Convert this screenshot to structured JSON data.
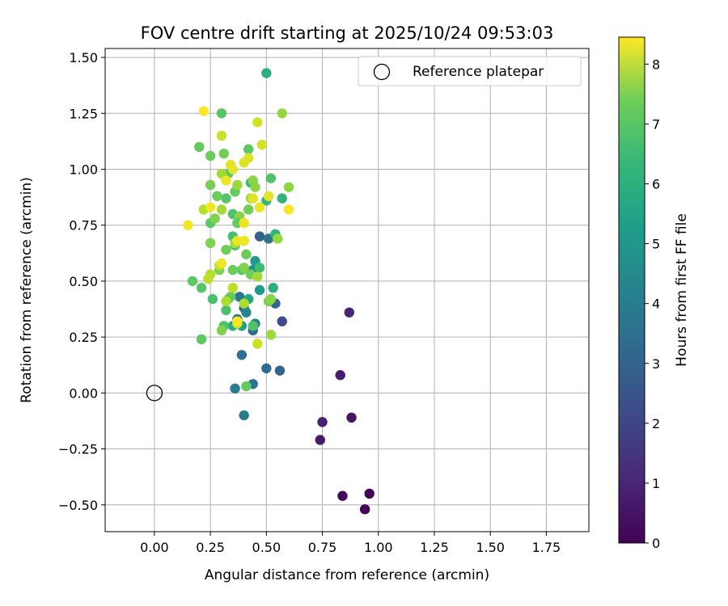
{
  "chart_data": {
    "type": "scatter",
    "title": "FOV centre drift starting at 2025/10/24 09:53:03",
    "xlabel": "Angular distance from reference (arcmin)",
    "ylabel": "Rotation from reference (arcmin)",
    "xlim": [
      -0.22,
      1.94
    ],
    "ylim": [
      -0.62,
      1.54
    ],
    "xticks": [
      0.0,
      0.25,
      0.5,
      0.75,
      1.0,
      1.25,
      1.5,
      1.75
    ],
    "xtick_labels": [
      "0.00",
      "0.25",
      "0.50",
      "0.75",
      "1.00",
      "1.25",
      "1.50",
      "1.75"
    ],
    "yticks": [
      -0.5,
      -0.25,
      0.0,
      0.25,
      0.5,
      0.75,
      1.0,
      1.25,
      1.5
    ],
    "ytick_labels": [
      "−0.50",
      "−0.25",
      "0.00",
      "0.25",
      "0.50",
      "0.75",
      "1.00",
      "1.25",
      "1.50"
    ],
    "grid": true,
    "legend": {
      "label": "Reference platepar",
      "placement": "top-right",
      "marker": "open-circle"
    },
    "reference_point": {
      "x": 0.0,
      "y": 0.0
    },
    "colorbar": {
      "label": "Hours from first FF file",
      "range": [
        0,
        8.45
      ],
      "ticks": [
        0,
        1,
        2,
        3,
        4,
        5,
        6,
        7,
        8
      ],
      "tick_labels": [
        "0",
        "1",
        "2",
        "3",
        "4",
        "5",
        "6",
        "7",
        "8"
      ],
      "colormap": "viridis"
    },
    "series": [
      {
        "name": "FOV centre drift",
        "points": [
          {
            "x": 0.94,
            "y": -0.52,
            "c": 0.05
          },
          {
            "x": 0.96,
            "y": -0.45,
            "c": 0.1
          },
          {
            "x": 0.84,
            "y": -0.46,
            "c": 0.2
          },
          {
            "x": 0.74,
            "y": -0.21,
            "c": 0.6
          },
          {
            "x": 0.75,
            "y": -0.13,
            "c": 0.8
          },
          {
            "x": 0.88,
            "y": -0.11,
            "c": 0.5
          },
          {
            "x": 0.83,
            "y": 0.08,
            "c": 0.7
          },
          {
            "x": 0.87,
            "y": 0.36,
            "c": 0.9
          },
          {
            "x": 0.57,
            "y": 0.32,
            "c": 1.9
          },
          {
            "x": 0.56,
            "y": 0.1,
            "c": 2.7
          },
          {
            "x": 0.5,
            "y": 0.11,
            "c": 3.0
          },
          {
            "x": 0.39,
            "y": 0.17,
            "c": 3.1
          },
          {
            "x": 0.4,
            "y": -0.1,
            "c": 3.5
          },
          {
            "x": 0.36,
            "y": 0.02,
            "c": 3.6
          },
          {
            "x": 0.44,
            "y": 0.04,
            "c": 3.3
          },
          {
            "x": 0.44,
            "y": 0.28,
            "c": 2.9
          },
          {
            "x": 0.54,
            "y": 0.4,
            "c": 2.8
          },
          {
            "x": 0.47,
            "y": 0.7,
            "c": 2.6
          },
          {
            "x": 0.51,
            "y": 0.69,
            "c": 3.2
          },
          {
            "x": 0.4,
            "y": 0.38,
            "c": 3.0
          },
          {
            "x": 0.38,
            "y": 0.43,
            "c": 3.4
          },
          {
            "x": 0.37,
            "y": 0.33,
            "c": 3.5
          },
          {
            "x": 0.45,
            "y": 0.31,
            "c": 3.8
          },
          {
            "x": 0.41,
            "y": 0.36,
            "c": 3.9
          },
          {
            "x": 0.44,
            "y": 0.55,
            "c": 4.2
          },
          {
            "x": 0.47,
            "y": 0.46,
            "c": 4.5
          },
          {
            "x": 0.45,
            "y": 0.59,
            "c": 4.6
          },
          {
            "x": 0.39,
            "y": 0.3,
            "c": 4.8
          },
          {
            "x": 0.42,
            "y": 0.42,
            "c": 5.0
          },
          {
            "x": 0.35,
            "y": 0.3,
            "c": 5.2
          },
          {
            "x": 0.53,
            "y": 0.47,
            "c": 5.3
          },
          {
            "x": 0.54,
            "y": 0.71,
            "c": 5.4
          },
          {
            "x": 0.57,
            "y": 0.87,
            "c": 5.5
          },
          {
            "x": 0.5,
            "y": 0.86,
            "c": 5.6
          },
          {
            "x": 0.43,
            "y": 0.94,
            "c": 5.7
          },
          {
            "x": 0.5,
            "y": 1.43,
            "c": 5.3
          },
          {
            "x": 0.47,
            "y": 0.56,
            "c": 5.8
          },
          {
            "x": 0.35,
            "y": 0.7,
            "c": 5.9
          },
          {
            "x": 0.32,
            "y": 0.37,
            "c": 6.0
          },
          {
            "x": 0.44,
            "y": 0.3,
            "c": 6.1
          },
          {
            "x": 0.21,
            "y": 0.47,
            "c": 6.2
          },
          {
            "x": 0.26,
            "y": 0.42,
            "c": 6.0
          },
          {
            "x": 0.21,
            "y": 0.24,
            "c": 6.3
          },
          {
            "x": 0.41,
            "y": 0.03,
            "c": 6.4
          },
          {
            "x": 0.31,
            "y": 0.3,
            "c": 6.1
          },
          {
            "x": 0.39,
            "y": 0.55,
            "c": 6.2
          },
          {
            "x": 0.34,
            "y": 0.43,
            "c": 6.4
          },
          {
            "x": 0.36,
            "y": 0.66,
            "c": 6.0
          },
          {
            "x": 0.41,
            "y": 0.62,
            "c": 6.5
          },
          {
            "x": 0.52,
            "y": 0.96,
            "c": 6.1
          },
          {
            "x": 0.42,
            "y": 1.09,
            "c": 6.3
          },
          {
            "x": 0.3,
            "y": 1.25,
            "c": 6.2
          },
          {
            "x": 0.2,
            "y": 1.1,
            "c": 6.4
          },
          {
            "x": 0.25,
            "y": 1.06,
            "c": 6.5
          },
          {
            "x": 0.31,
            "y": 1.07,
            "c": 6.6
          },
          {
            "x": 0.33,
            "y": 0.98,
            "c": 6.3
          },
          {
            "x": 0.25,
            "y": 0.93,
            "c": 6.7
          },
          {
            "x": 0.28,
            "y": 0.88,
            "c": 6.5
          },
          {
            "x": 0.32,
            "y": 0.87,
            "c": 6.2
          },
          {
            "x": 0.36,
            "y": 0.9,
            "c": 6.4
          },
          {
            "x": 0.42,
            "y": 0.82,
            "c": 6.6
          },
          {
            "x": 0.25,
            "y": 0.76,
            "c": 6.3
          },
          {
            "x": 0.27,
            "y": 0.78,
            "c": 6.8
          },
          {
            "x": 0.35,
            "y": 0.8,
            "c": 6.1
          },
          {
            "x": 0.38,
            "y": 0.79,
            "c": 6.9
          },
          {
            "x": 0.37,
            "y": 0.76,
            "c": 6.4
          },
          {
            "x": 0.25,
            "y": 0.67,
            "c": 6.8
          },
          {
            "x": 0.32,
            "y": 0.64,
            "c": 6.6
          },
          {
            "x": 0.4,
            "y": 0.68,
            "c": 6.9
          },
          {
            "x": 0.17,
            "y": 0.5,
            "c": 6.3
          },
          {
            "x": 0.29,
            "y": 0.55,
            "c": 6.7
          },
          {
            "x": 0.35,
            "y": 0.55,
            "c": 6.5
          },
          {
            "x": 0.4,
            "y": 0.56,
            "c": 6.8
          },
          {
            "x": 0.43,
            "y": 0.53,
            "c": 6.6
          },
          {
            "x": 0.51,
            "y": 0.41,
            "c": 6.7
          },
          {
            "x": 0.52,
            "y": 0.42,
            "c": 6.9
          },
          {
            "x": 0.33,
            "y": 0.42,
            "c": 6.4
          },
          {
            "x": 0.3,
            "y": 0.28,
            "c": 6.8
          },
          {
            "x": 0.57,
            "y": 1.25,
            "c": 7.1
          },
          {
            "x": 0.44,
            "y": 0.95,
            "c": 6.9
          },
          {
            "x": 0.45,
            "y": 0.92,
            "c": 7.0
          },
          {
            "x": 0.6,
            "y": 0.92,
            "c": 7.0
          },
          {
            "x": 0.55,
            "y": 0.69,
            "c": 7.1
          },
          {
            "x": 0.52,
            "y": 0.26,
            "c": 7.2
          },
          {
            "x": 0.37,
            "y": 0.93,
            "c": 7.2
          },
          {
            "x": 0.3,
            "y": 0.98,
            "c": 7.3
          },
          {
            "x": 0.43,
            "y": 0.87,
            "c": 7.2
          },
          {
            "x": 0.36,
            "y": 0.67,
            "c": 7.3
          },
          {
            "x": 0.4,
            "y": 0.4,
            "c": 7.4
          },
          {
            "x": 0.46,
            "y": 0.52,
            "c": 7.3
          },
          {
            "x": 0.32,
            "y": 0.41,
            "c": 7.4
          },
          {
            "x": 0.3,
            "y": 0.82,
            "c": 7.3
          },
          {
            "x": 0.22,
            "y": 0.82,
            "c": 7.5
          },
          {
            "x": 0.25,
            "y": 0.53,
            "c": 7.5
          },
          {
            "x": 0.24,
            "y": 0.51,
            "c": 7.6
          },
          {
            "x": 0.29,
            "y": 0.57,
            "c": 7.7
          },
          {
            "x": 0.35,
            "y": 0.47,
            "c": 7.6
          },
          {
            "x": 0.37,
            "y": 0.31,
            "c": 7.8
          },
          {
            "x": 0.46,
            "y": 0.22,
            "c": 7.8
          },
          {
            "x": 0.3,
            "y": 1.15,
            "c": 7.8
          },
          {
            "x": 0.48,
            "y": 1.11,
            "c": 7.9
          },
          {
            "x": 0.46,
            "y": 1.21,
            "c": 7.9
          },
          {
            "x": 0.42,
            "y": 1.05,
            "c": 8.0
          },
          {
            "x": 0.4,
            "y": 1.03,
            "c": 8.0
          },
          {
            "x": 0.35,
            "y": 1.0,
            "c": 8.1
          },
          {
            "x": 0.34,
            "y": 1.02,
            "c": 8.1
          },
          {
            "x": 0.32,
            "y": 0.95,
            "c": 8.2
          },
          {
            "x": 0.44,
            "y": 0.87,
            "c": 8.1
          },
          {
            "x": 0.47,
            "y": 0.83,
            "c": 8.2
          },
          {
            "x": 0.4,
            "y": 0.76,
            "c": 8.2
          },
          {
            "x": 0.51,
            "y": 0.88,
            "c": 8.1
          },
          {
            "x": 0.25,
            "y": 0.83,
            "c": 8.3
          },
          {
            "x": 0.15,
            "y": 0.75,
            "c": 8.3
          },
          {
            "x": 0.37,
            "y": 0.68,
            "c": 8.2
          },
          {
            "x": 0.4,
            "y": 0.68,
            "c": 8.3
          },
          {
            "x": 0.3,
            "y": 0.58,
            "c": 8.3
          },
          {
            "x": 0.37,
            "y": 0.32,
            "c": 8.4
          },
          {
            "x": 0.22,
            "y": 1.26,
            "c": 8.4
          },
          {
            "x": 0.6,
            "y": 0.82,
            "c": 8.4
          }
        ]
      }
    ]
  }
}
